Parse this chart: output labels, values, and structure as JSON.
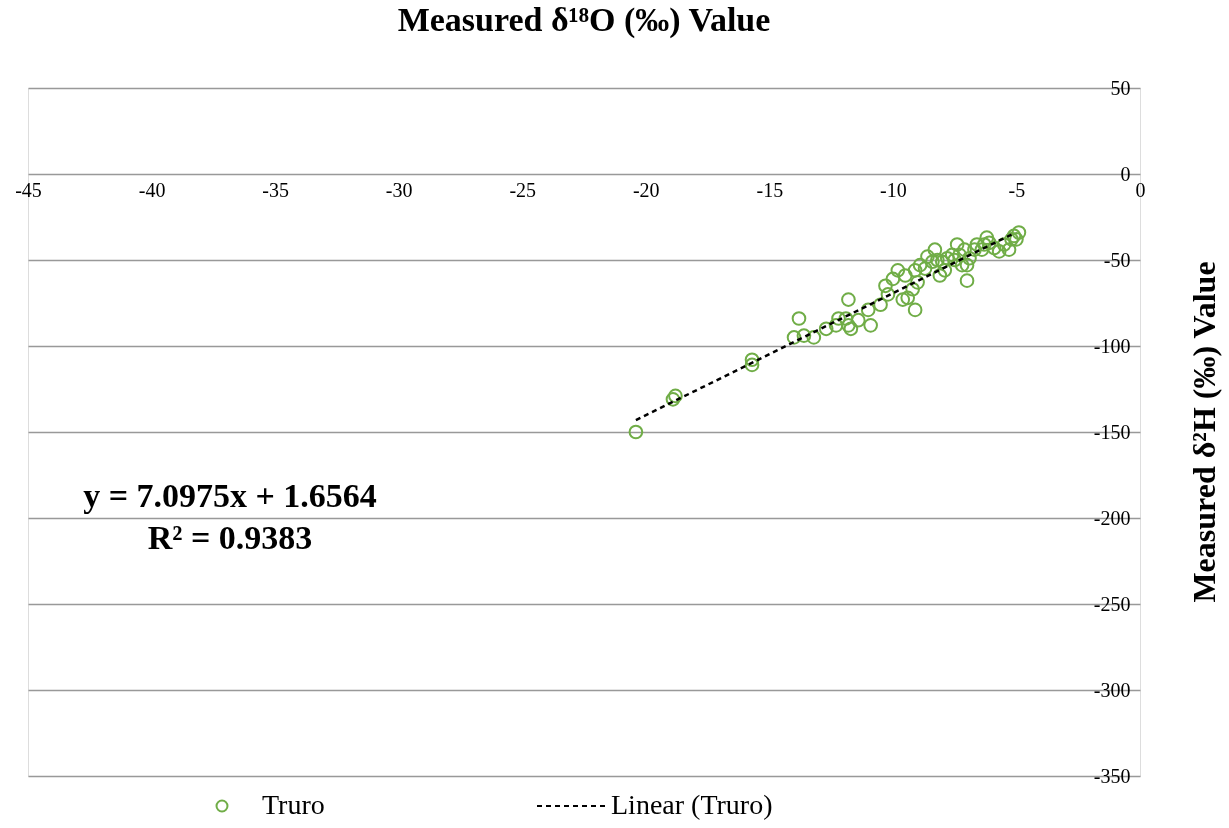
{
  "chart_data": {
    "type": "scatter",
    "xlabel": "Measured  δ¹⁸O (‰) Value",
    "ylabel": "Measured  δ²H (‰) Value",
    "xlim": [
      -45,
      0
    ],
    "xticks": [
      -45,
      -40,
      -35,
      -30,
      -25,
      -20,
      -15,
      -10,
      -5,
      0
    ],
    "ylim": [
      -350,
      50
    ],
    "yticks": [
      -350,
      -300,
      -250,
      -200,
      -150,
      -100,
      -50,
      0,
      50
    ],
    "grid": "y",
    "legend": "bottom",
    "marker": "circle",
    "annotations": [
      "y = 7.0975x + 1.6564",
      "R² = 0.9383"
    ],
    "series": [
      {
        "name": "Truro",
        "color": "#70ad47",
        "x": [
          -20.4,
          -18.9,
          -18.8,
          -15.7,
          -15.7,
          -13.8,
          -14.0,
          -13.6,
          -13.2,
          -12.7,
          -12.2,
          -12.3,
          -11.8,
          -11.9,
          -11.8,
          -11.7,
          -11.4,
          -10.9,
          -11.0,
          -10.5,
          -10.3,
          -10.2,
          -9.8,
          -9.6,
          -9.4,
          -9.2,
          -9.1,
          -9.0,
          -9.1,
          -8.9,
          -8.7,
          -8.6,
          -8.4,
          -8.3,
          -8.2,
          -8.1,
          -8.0,
          -7.9,
          -7.8,
          -7.6,
          -7.5,
          -7.4,
          -7.3,
          -7.1,
          -7.0,
          -7.2,
          -6.9,
          -6.7,
          -6.6,
          -6.4,
          -6.3,
          -6.1,
          -5.9,
          -5.7,
          -5.5,
          -5.3,
          -5.2,
          -5.1,
          -4.9,
          -7.0,
          -5.0,
          -6.2,
          -9.5,
          -10.0
        ],
        "values": [
          -150,
          -131,
          -129,
          -108,
          -111,
          -84,
          -95,
          -94,
          -95,
          -90,
          -84,
          -88,
          -88,
          -84,
          -73,
          -90,
          -85,
          -88,
          -79,
          -76,
          -65,
          -70,
          -56,
          -73,
          -72,
          -67,
          -79,
          -63,
          -56,
          -53,
          -55,
          -48,
          -51,
          -44,
          -50,
          -59,
          -51,
          -56,
          -49,
          -47,
          -50,
          -41,
          -47,
          -44,
          -53,
          -53,
          -49,
          -44,
          -41,
          -44,
          -41,
          -40,
          -43,
          -45,
          -41,
          -44,
          -38,
          -36,
          -34,
          -62,
          -38,
          -37,
          -59,
          -61
        ]
      },
      {
        "name": "Linear (Truro)",
        "color": "#000000",
        "type": "line",
        "line_style": "dashed",
        "marker": "none",
        "x": [
          -20.4,
          -5.1
        ],
        "values": [
          -143.1,
          -34.5
        ]
      }
    ]
  }
}
